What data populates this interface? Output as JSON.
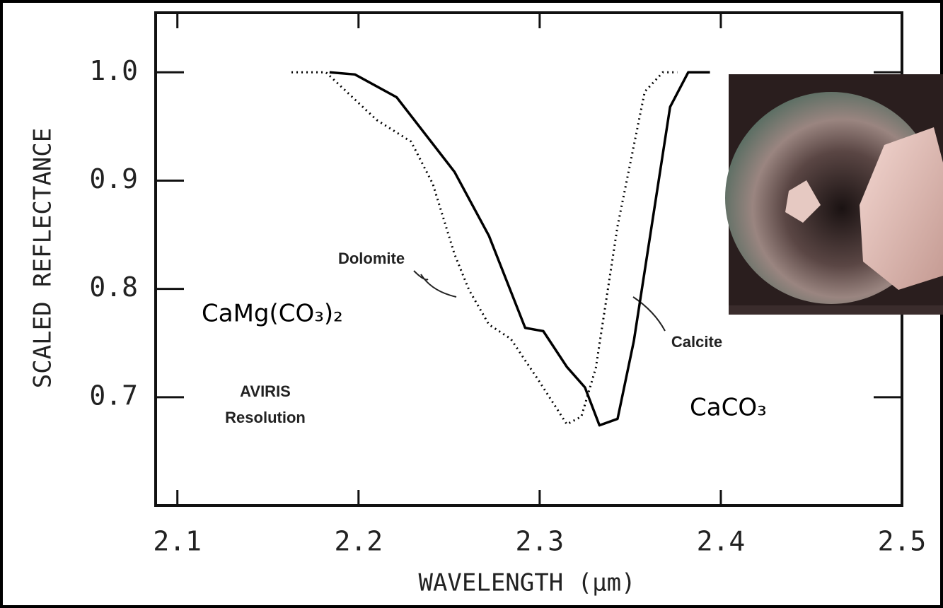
{
  "chart_data": {
    "type": "line",
    "xlabel": "WAVELENGTH (µm)",
    "ylabel": "SCALED REFLECTANCE",
    "xlim": [
      2.088,
      2.5
    ],
    "xticks": [
      2.1,
      2.2,
      2.3,
      2.4,
      2.5
    ],
    "ylim": [
      0.6,
      1.055
    ],
    "yticks": [
      0.7,
      0.8,
      0.9,
      {
        "value": 1,
        "label": "1.0"
      }
    ],
    "series": [
      {
        "name": "Calcite",
        "color": "#000000",
        "dash": "solid",
        "x": [
          2.184,
          2.198,
          2.221,
          2.253,
          2.272,
          2.292,
          2.302,
          2.315,
          2.325,
          2.333,
          2.343,
          2.352,
          2.372,
          2.382,
          2.394
        ],
        "values": [
          1.0,
          0.998,
          0.977,
          0.908,
          0.849,
          0.764,
          0.761,
          0.728,
          0.709,
          0.674,
          0.68,
          0.752,
          0.968,
          1.0,
          1.0
        ]
      },
      {
        "name": "Dolomite",
        "color": "#000000",
        "dash": "dotted",
        "x": [
          2.163,
          2.182,
          2.21,
          2.229,
          2.241,
          2.253,
          2.261,
          2.272,
          2.284,
          2.3,
          2.315,
          2.323,
          2.331,
          2.343,
          2.358,
          2.368,
          2.376
        ],
        "values": [
          1.0,
          1.0,
          0.956,
          0.936,
          0.897,
          0.832,
          0.799,
          0.767,
          0.754,
          0.714,
          0.675,
          0.682,
          0.727,
          0.858,
          0.982,
          1.0,
          1.0
        ]
      }
    ],
    "annotations": [
      "CaMg(CO₃)₂",
      "CaCO₃",
      "AVIRIS",
      "Resolution"
    ]
  }
}
